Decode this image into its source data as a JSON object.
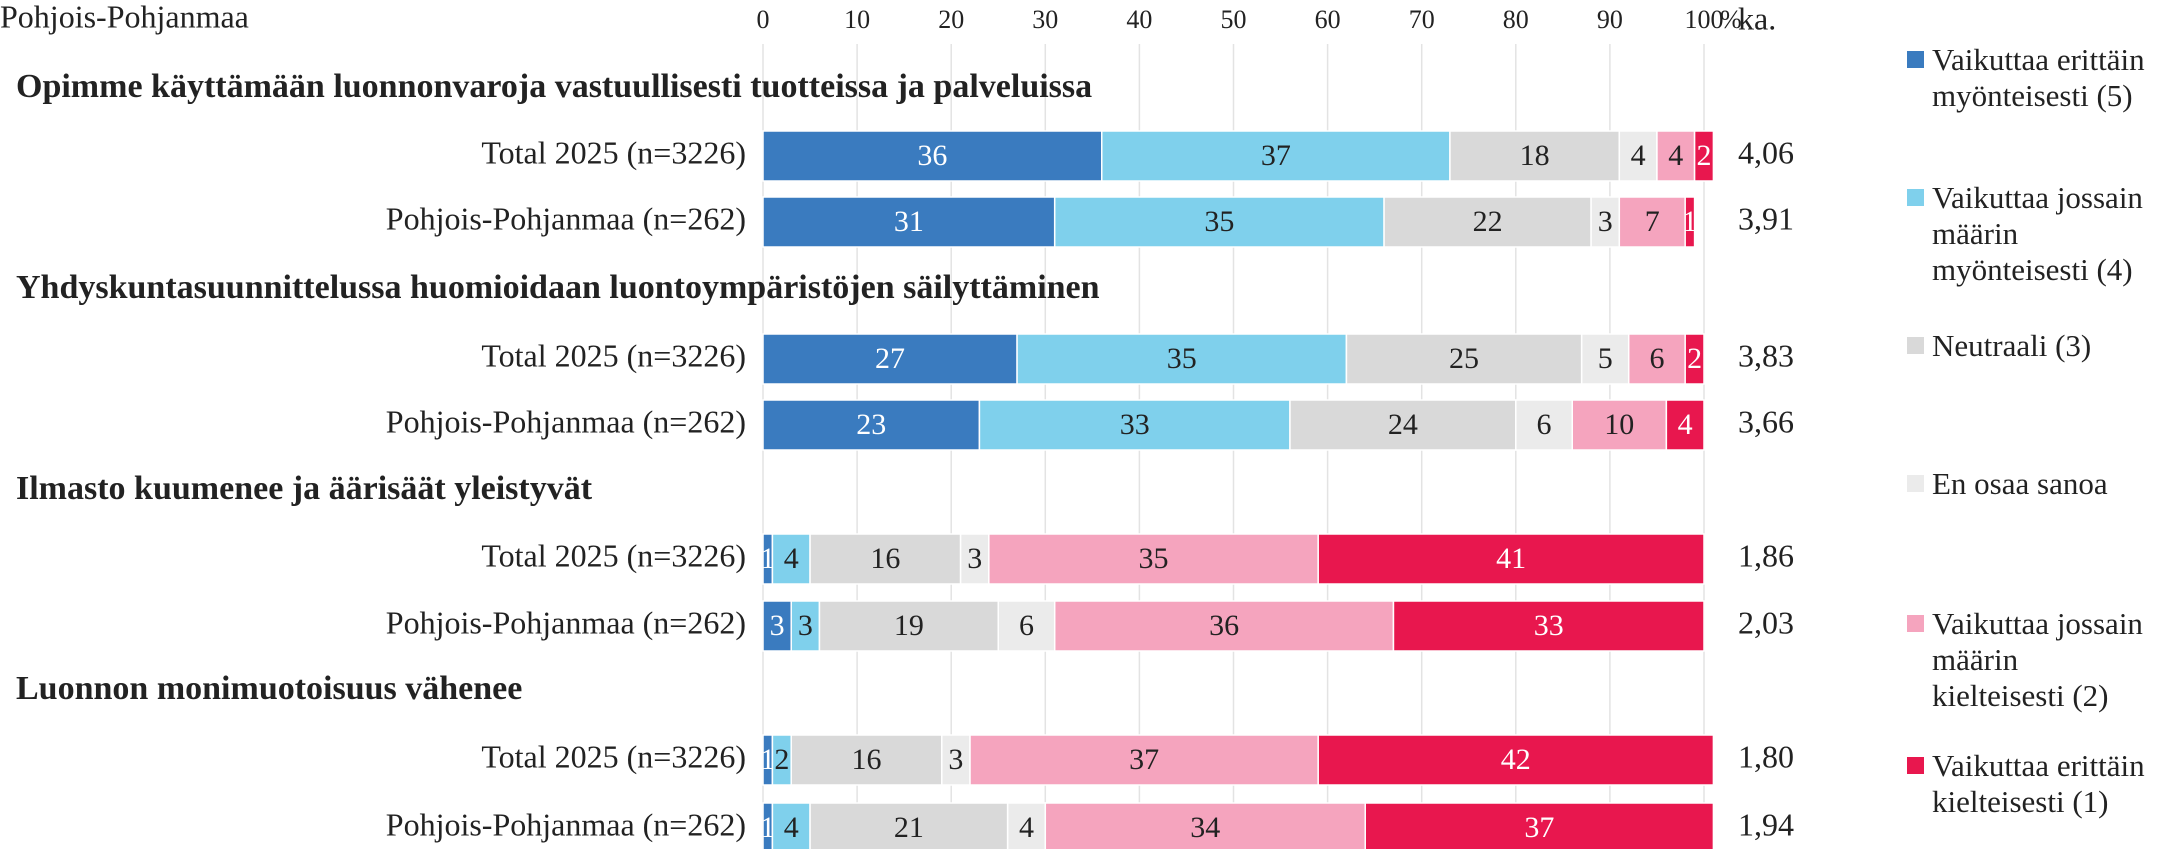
{
  "chart_data": {
    "type": "bar",
    "orientation": "horizontal",
    "stacked": true,
    "subtitle": "Pohjois-Pohjanmaa",
    "group_titles": [
      "Opimme käyttämään luonnonvaroja vastuullisesti tuotteissa ja palveluissa",
      "Yhdyskuntasuunnittelussa huomioidaan luontoympäristöjen säilyttäminen",
      "Ilmasto kuumenee ja äärisäät yleistyvät",
      "Luonnon monimuotoisuus vähenee"
    ],
    "categories": [
      "Total 2025 (n=3226)",
      "Pohjois-Pohjanmaa (n=262)",
      "Total 2025 (n=3226)",
      "Pohjois-Pohjanmaa (n=262)",
      "Total 2025 (n=3226)",
      "Pohjois-Pohjanmaa (n=262)",
      "Total 2025 (n=3226)",
      "Pohjois-Pohjanmaa (n=262)"
    ],
    "series": [
      {
        "name": "Vaikuttaa erittäin myönteisesti (5)",
        "color": "#3a7bbf",
        "label_color": "#ffffff",
        "values": [
          36,
          31,
          27,
          23,
          1,
          3,
          1,
          1
        ]
      },
      {
        "name": "Vaikuttaa jossain määrin myönteisesti (4)",
        "color": "#7fd0ec",
        "label_color": "#222222",
        "values": [
          37,
          35,
          35,
          33,
          4,
          3,
          2,
          4
        ]
      },
      {
        "name": "Neutraali (3)",
        "color": "#d9d9d9",
        "label_color": "#222222",
        "values": [
          18,
          22,
          25,
          24,
          16,
          19,
          16,
          21
        ]
      },
      {
        "name": "En osaa sanoa",
        "color": "#ebebeb",
        "label_color": "#222222",
        "values": [
          4,
          3,
          5,
          6,
          3,
          6,
          3,
          4
        ]
      },
      {
        "name": "Vaikuttaa jossain määrin kielteisesti (2)",
        "color": "#f5a4be",
        "label_color": "#222222",
        "values": [
          4,
          7,
          6,
          10,
          35,
          36,
          37,
          34
        ]
      },
      {
        "name": "Vaikuttaa erittäin kielteisesti (1)",
        "color": "#e8174e",
        "label_color": "#ffffff",
        "values": [
          2,
          1,
          2,
          4,
          41,
          33,
          42,
          37
        ]
      }
    ],
    "averages_header": "ka.",
    "averages": {
      "values": [
        4.06,
        3.91,
        3.83,
        3.66,
        1.86,
        2.03,
        1.8,
        1.94
      ],
      "value_labels": [
        "4,06",
        "3,91",
        "3,83",
        "3,66",
        "1,86",
        "2,03",
        "1,80",
        "1,94"
      ]
    },
    "xlim": [
      0,
      100
    ],
    "xticks": [
      0,
      10,
      20,
      30,
      40,
      50,
      60,
      70,
      80,
      90,
      100
    ],
    "x_unit": "%",
    "grid": true
  }
}
